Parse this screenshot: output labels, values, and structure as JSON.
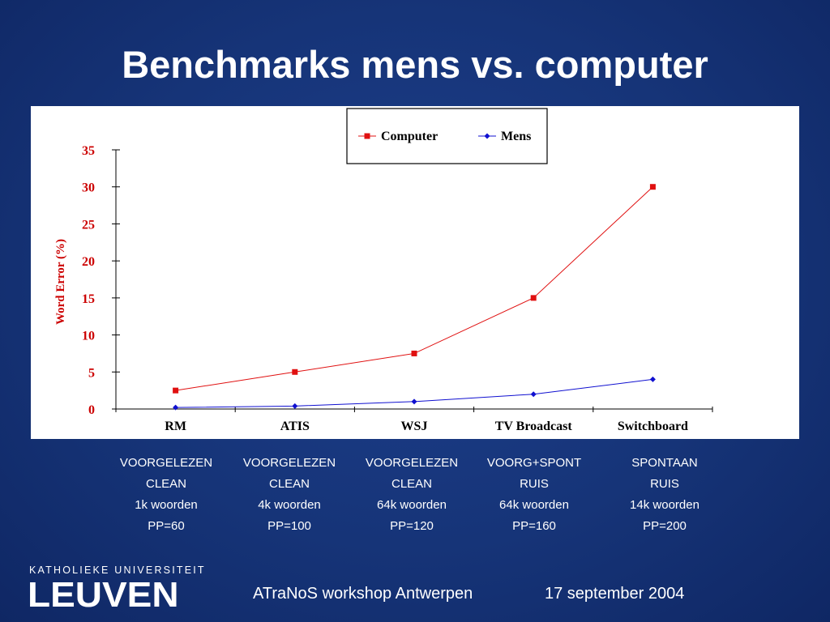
{
  "slide": {
    "title": "Benchmarks mens vs. computer",
    "footer_left": "ATraNoS workshop Antwerpen",
    "footer_right": "17 september 2004",
    "logo_top": "KATHOLIEKE UNIVERSITEIT",
    "logo_main": "LEUVEN",
    "background_color": "#163478"
  },
  "conditions": [
    {
      "lines": [
        "VOORGELEZEN",
        "CLEAN",
        "1k woorden",
        "PP=60"
      ]
    },
    {
      "lines": [
        "VOORGELEZEN",
        "CLEAN",
        "4k woorden",
        "PP=100"
      ]
    },
    {
      "lines": [
        "VOORGELEZEN",
        "CLEAN",
        "64k woorden",
        "PP=120"
      ]
    },
    {
      "lines": [
        "VOORG+SPONT",
        "RUIS",
        "64k woorden",
        "PP=160"
      ]
    },
    {
      "lines": [
        "SPONTAAN",
        "RUIS",
        "14k woorden",
        "PP=200"
      ]
    }
  ],
  "chart_data": {
    "type": "line",
    "categories": [
      "RM",
      "ATIS",
      "WSJ",
      "TV Broadcast",
      "Switchboard"
    ],
    "series": [
      {
        "name": "Computer",
        "values": [
          2.5,
          5,
          7.5,
          15,
          30
        ],
        "color": "#e01010",
        "marker": "square"
      },
      {
        "name": "Mens",
        "values": [
          0.2,
          0.4,
          1,
          2,
          4
        ],
        "color": "#1010d0",
        "marker": "diamond"
      }
    ],
    "title": "",
    "xlabel": "",
    "ylabel": "Word Error (%)",
    "ylim": [
      0,
      35
    ],
    "yticks": [
      0,
      5,
      10,
      15,
      20,
      25,
      30,
      35
    ],
    "grid": false,
    "legend": "top-center",
    "axis_label_color": "#cc0000"
  }
}
